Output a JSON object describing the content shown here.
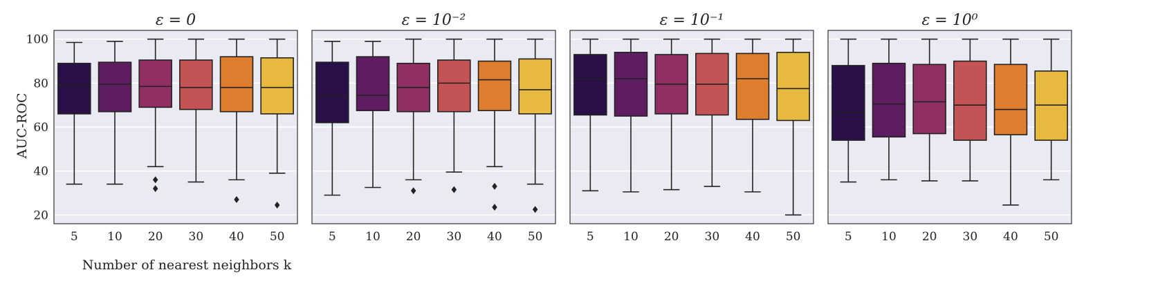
{
  "chart_data": {
    "type": "box",
    "xlabel": "Number of nearest neighbors k",
    "ylabel": "AUC-ROC",
    "categories": [
      "5",
      "10",
      "20",
      "30",
      "40",
      "50"
    ],
    "ylim": [
      16,
      104
    ],
    "yticks": [
      20,
      40,
      60,
      80,
      100
    ],
    "grid": true,
    "colors": [
      "#2a1048",
      "#5e1d61",
      "#8f2f62",
      "#c45356",
      "#dd7d2d",
      "#e7b93f"
    ],
    "panels": [
      {
        "title": "ε = 0",
        "boxes": [
          {
            "k": "5",
            "whisker_low": 34,
            "q1": 66,
            "median": 79,
            "q3": 89,
            "whisker_high": 98.5,
            "outliers": []
          },
          {
            "k": "10",
            "whisker_low": 34,
            "q1": 67,
            "median": 79.5,
            "q3": 89.5,
            "whisker_high": 99,
            "outliers": []
          },
          {
            "k": "20",
            "whisker_low": 42,
            "q1": 69,
            "median": 78.5,
            "q3": 90.5,
            "whisker_high": 100,
            "outliers": [
              36,
              32
            ]
          },
          {
            "k": "30",
            "whisker_low": 35,
            "q1": 68,
            "median": 78,
            "q3": 90.5,
            "whisker_high": 100,
            "outliers": []
          },
          {
            "k": "40",
            "whisker_low": 36,
            "q1": 67,
            "median": 78,
            "q3": 92,
            "whisker_high": 100,
            "outliers": [
              27
            ]
          },
          {
            "k": "50",
            "whisker_low": 39,
            "q1": 66,
            "median": 78,
            "q3": 91.5,
            "whisker_high": 100,
            "outliers": [
              24.5
            ]
          }
        ]
      },
      {
        "title": "ε = 10⁻²",
        "boxes": [
          {
            "k": "5",
            "whisker_low": 29,
            "q1": 62,
            "median": 74,
            "q3": 89.5,
            "whisker_high": 99,
            "outliers": []
          },
          {
            "k": "10",
            "whisker_low": 32.5,
            "q1": 67.5,
            "median": 74.5,
            "q3": 92,
            "whisker_high": 99,
            "outliers": []
          },
          {
            "k": "20",
            "whisker_low": 36,
            "q1": 67,
            "median": 78,
            "q3": 89,
            "whisker_high": 100,
            "outliers": [
              31
            ]
          },
          {
            "k": "30",
            "whisker_low": 39.5,
            "q1": 67,
            "median": 80,
            "q3": 90.5,
            "whisker_high": 100,
            "outliers": [
              31.5
            ]
          },
          {
            "k": "40",
            "whisker_low": 42,
            "q1": 67.5,
            "median": 81.5,
            "q3": 90,
            "whisker_high": 100,
            "outliers": [
              33,
              23.5
            ]
          },
          {
            "k": "50",
            "whisker_low": 34,
            "q1": 66,
            "median": 77,
            "q3": 91,
            "whisker_high": 100,
            "outliers": [
              22.5
            ]
          }
        ]
      },
      {
        "title": "ε = 10⁻¹",
        "boxes": [
          {
            "k": "5",
            "whisker_low": 31,
            "q1": 65.5,
            "median": 82,
            "q3": 93,
            "whisker_high": 100,
            "outliers": []
          },
          {
            "k": "10",
            "whisker_low": 30.5,
            "q1": 65,
            "median": 82,
            "q3": 94,
            "whisker_high": 100,
            "outliers": []
          },
          {
            "k": "20",
            "whisker_low": 31.5,
            "q1": 66,
            "median": 79.5,
            "q3": 93,
            "whisker_high": 100,
            "outliers": []
          },
          {
            "k": "30",
            "whisker_low": 33,
            "q1": 65.5,
            "median": 79.5,
            "q3": 93.5,
            "whisker_high": 100,
            "outliers": []
          },
          {
            "k": "40",
            "whisker_low": 30.5,
            "q1": 63.5,
            "median": 82,
            "q3": 93.5,
            "whisker_high": 100,
            "outliers": []
          },
          {
            "k": "50",
            "whisker_low": 20,
            "q1": 63,
            "median": 77.5,
            "q3": 94,
            "whisker_high": 100,
            "outliers": []
          }
        ]
      },
      {
        "title": "ε = 10⁰",
        "boxes": [
          {
            "k": "5",
            "whisker_low": 35,
            "q1": 54,
            "median": 66.5,
            "q3": 88,
            "whisker_high": 100,
            "outliers": []
          },
          {
            "k": "10",
            "whisker_low": 36,
            "q1": 55.5,
            "median": 70.5,
            "q3": 89,
            "whisker_high": 100,
            "outliers": []
          },
          {
            "k": "20",
            "whisker_low": 35.5,
            "q1": 57,
            "median": 71.5,
            "q3": 88.5,
            "whisker_high": 100,
            "outliers": []
          },
          {
            "k": "30",
            "whisker_low": 35.5,
            "q1": 54,
            "median": 70,
            "q3": 90,
            "whisker_high": 100,
            "outliers": []
          },
          {
            "k": "40",
            "whisker_low": 24.5,
            "q1": 56.5,
            "median": 68,
            "q3": 88.5,
            "whisker_high": 100,
            "outliers": []
          },
          {
            "k": "50",
            "whisker_low": 36,
            "q1": 54,
            "median": 70,
            "q3": 85.5,
            "whisker_high": 100,
            "outliers": []
          }
        ]
      }
    ]
  }
}
